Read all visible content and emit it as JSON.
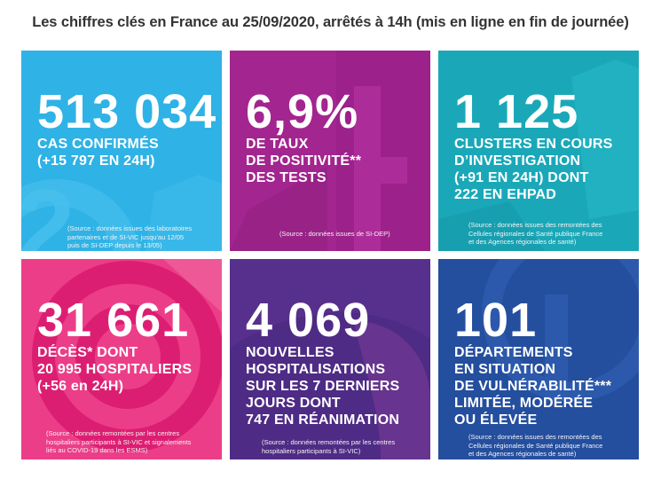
{
  "header": {
    "title": "Les chiffres clés en France au 25/09/2020, arrêtés à 14h (mis en ligne en fin de journée)"
  },
  "tiles": [
    {
      "color": "#2fb2e6",
      "number": "513 034",
      "lines": [
        "CAS CONFIRMÉS",
        "(+15 797 EN 24H)"
      ],
      "source": [
        "(Source : données issues des laboratoires",
        "partenaires et de SI-VIC jusqu'au 12/05",
        "puis de SI-DEP depuis le 13/05)"
      ]
    },
    {
      "color": "#a3258f",
      "number": "6,9%",
      "lines": [
        "DE TAUX",
        "DE POSITIVITÉ**",
        "DES TESTS"
      ],
      "source": [
        "(Source : données issues de SI-DEP)"
      ]
    },
    {
      "color": "#1aa8b8",
      "number": "1 125",
      "lines": [
        "CLUSTERS EN COURS",
        "D’INVESTIGATION",
        "(+91 EN 24H) DONT",
        "222 EN EHPAD"
      ],
      "source": [
        "(Source : données issues des remontées des",
        "Cellules régionales de Santé publique France",
        "et des Agences régionales de santé)"
      ]
    },
    {
      "color": "#ec3e88",
      "number": "31 661",
      "lines": [
        "DÉCÈS* DONT",
        "20 995 HOSPITALIERS",
        "(+56 en 24H)"
      ],
      "source": [
        "(Source : données remontées par les centres",
        "hospitaliers participants à SI-VIC et signalements",
        "liés au COVID-19 dans les ESMS)"
      ]
    },
    {
      "color": "#56308c",
      "number": "4 069",
      "lines": [
        "NOUVELLES",
        "HOSPITALISATIONS",
        "SUR LES 7 DERNIERS",
        "JOURS DONT",
        "747 EN RÉANIMATION"
      ],
      "source": [
        "(Source : données remontées par les centres",
        "hospitaliers participants à SI-VIC)"
      ]
    },
    {
      "color": "#244e9e",
      "number": "101",
      "lines": [
        "DÉPARTEMENTS",
        "EN SITUATION",
        "DE VULNÉRABILITÉ***",
        "LIMITÉE, MODÉRÉE",
        "OU ÉLEVÉE"
      ],
      "source": [
        "(Source : données issues des remontées des",
        "Cellules régionales de Santé publique France",
        "et des Agences régionales de santé)"
      ]
    }
  ]
}
